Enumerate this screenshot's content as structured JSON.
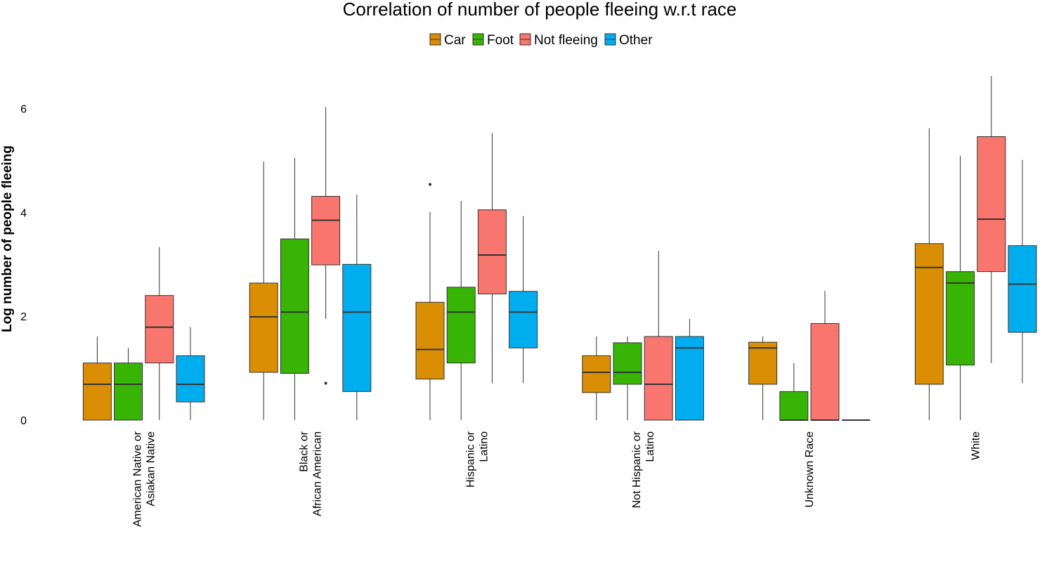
{
  "chart_data": {
    "type": "boxplot",
    "title": "Correlation of number of people fleeing w.r.t race",
    "ylabel": "Log number of people fleeing",
    "xlabel": "",
    "ylim": [
      0,
      6.7
    ],
    "yticks": [
      0,
      2,
      4,
      6
    ],
    "grid": false,
    "legend_position": "top",
    "colors": {
      "Car": "#D98E04",
      "Foot": "#38B404",
      "Not fleeing": "#F8766D",
      "Other": "#00AEF0"
    },
    "series_names": [
      "Car",
      "Foot",
      "Not fleeing",
      "Other"
    ],
    "categories": [
      {
        "lines": [
          "American Native or",
          "Asiakan Native"
        ],
        "boxes": [
          {
            "series": "Car",
            "whisker_low": 0,
            "q1": 0,
            "median": 0.69,
            "q3": 1.1,
            "whisker_high": 1.61,
            "outliers": []
          },
          {
            "series": "Foot",
            "whisker_low": 0,
            "q1": 0,
            "median": 0.69,
            "q3": 1.1,
            "whisker_high": 1.39,
            "outliers": []
          },
          {
            "series": "Not fleeing",
            "whisker_low": 0,
            "q1": 1.1,
            "median": 1.79,
            "q3": 2.4,
            "whisker_high": 3.33,
            "outliers": []
          },
          {
            "series": "Other",
            "whisker_low": 0,
            "q1": 0.35,
            "median": 0.69,
            "q3": 1.24,
            "whisker_high": 1.79,
            "outliers": []
          }
        ]
      },
      {
        "lines": [
          "Black or",
          "African American"
        ],
        "boxes": [
          {
            "series": "Car",
            "whisker_low": 0,
            "q1": 0.92,
            "median": 1.99,
            "q3": 2.64,
            "whisker_high": 4.98,
            "outliers": []
          },
          {
            "series": "Foot",
            "whisker_low": 0,
            "q1": 0.9,
            "median": 2.08,
            "q3": 3.49,
            "whisker_high": 5.05,
            "outliers": []
          },
          {
            "series": "Not fleeing",
            "whisker_low": 1.95,
            "q1": 2.99,
            "median": 3.85,
            "q3": 4.31,
            "whisker_high": 6.03,
            "outliers": [
              0.71
            ]
          },
          {
            "series": "Other",
            "whisker_low": 0,
            "q1": 0.55,
            "median": 2.08,
            "q3": 3.0,
            "whisker_high": 4.34,
            "outliers": []
          }
        ]
      },
      {
        "lines": [
          "Hispanic or",
          "Latino"
        ],
        "boxes": [
          {
            "series": "Car",
            "whisker_low": 0,
            "q1": 0.79,
            "median": 1.36,
            "q3": 2.27,
            "whisker_high": 4.01,
            "outliers": [
              4.54
            ]
          },
          {
            "series": "Foot",
            "whisker_low": 0,
            "q1": 1.1,
            "median": 2.08,
            "q3": 2.56,
            "whisker_high": 4.22,
            "outliers": []
          },
          {
            "series": "Not fleeing",
            "whisker_low": 0.71,
            "q1": 2.43,
            "median": 3.18,
            "q3": 4.05,
            "whisker_high": 5.53,
            "outliers": []
          },
          {
            "series": "Other",
            "whisker_low": 0.71,
            "q1": 1.39,
            "median": 2.08,
            "q3": 2.48,
            "whisker_high": 3.93,
            "outliers": []
          }
        ]
      },
      {
        "lines": [
          "Not Hispanic or",
          "Latino"
        ],
        "boxes": [
          {
            "series": "Car",
            "whisker_low": 0,
            "q1": 0.53,
            "median": 0.92,
            "q3": 1.24,
            "whisker_high": 1.61,
            "outliers": []
          },
          {
            "series": "Foot",
            "whisker_low": 0,
            "q1": 0.69,
            "median": 0.92,
            "q3": 1.49,
            "whisker_high": 1.61,
            "outliers": []
          },
          {
            "series": "Not fleeing",
            "whisker_low": 0,
            "q1": 0,
            "median": 0.69,
            "q3": 1.61,
            "whisker_high": 3.26,
            "outliers": []
          },
          {
            "series": "Other",
            "whisker_low": 0,
            "q1": 0,
            "median": 1.39,
            "q3": 1.61,
            "whisker_high": 1.95,
            "outliers": []
          }
        ]
      },
      {
        "lines": [
          "Unknown Race"
        ],
        "boxes": [
          {
            "series": "Car",
            "whisker_low": 0,
            "q1": 0.69,
            "median": 1.39,
            "q3": 1.5,
            "whisker_high": 1.61,
            "outliers": []
          },
          {
            "series": "Foot",
            "whisker_low": 0,
            "q1": 0,
            "median": 0,
            "q3": 0.55,
            "whisker_high": 1.1,
            "outliers": []
          },
          {
            "series": "Not fleeing",
            "whisker_low": 0,
            "q1": 0,
            "median": 0,
            "q3": 1.86,
            "whisker_high": 2.49,
            "outliers": []
          },
          {
            "series": "Other",
            "whisker_low": 0,
            "q1": 0,
            "median": 0,
            "q3": 0,
            "whisker_high": 0,
            "outliers": []
          }
        ]
      },
      {
        "lines": [
          "White"
        ],
        "boxes": [
          {
            "series": "Car",
            "whisker_low": 0,
            "q1": 0.69,
            "median": 2.94,
            "q3": 3.4,
            "whisker_high": 5.62,
            "outliers": []
          },
          {
            "series": "Foot",
            "whisker_low": 0,
            "q1": 1.06,
            "median": 2.64,
            "q3": 2.86,
            "whisker_high": 5.09,
            "outliers": []
          },
          {
            "series": "Not fleeing",
            "whisker_low": 1.1,
            "q1": 2.86,
            "median": 3.87,
            "q3": 5.46,
            "whisker_high": 6.63,
            "outliers": []
          },
          {
            "series": "Other",
            "whisker_low": 0.71,
            "q1": 1.69,
            "median": 2.62,
            "q3": 3.36,
            "whisker_high": 5.01,
            "outliers": []
          }
        ]
      }
    ]
  }
}
